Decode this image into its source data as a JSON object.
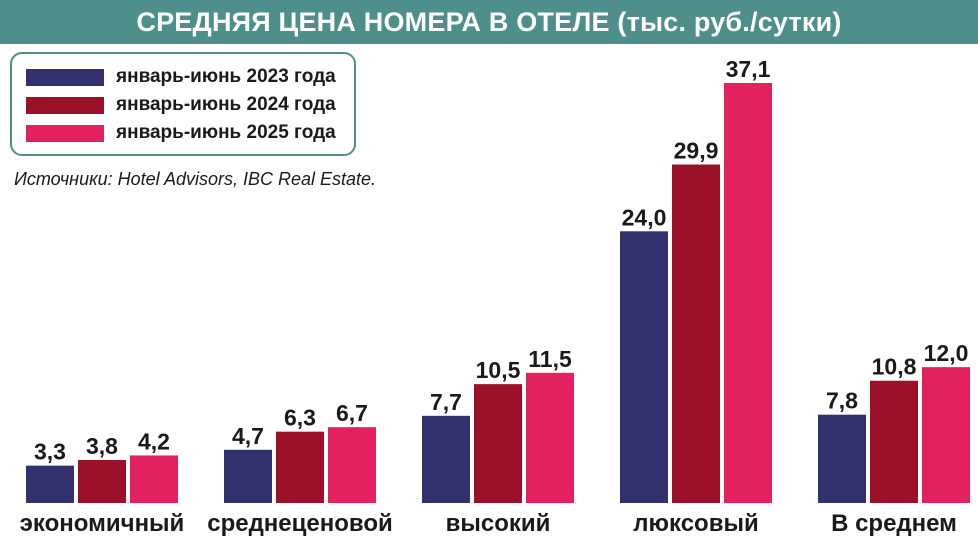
{
  "title": "СРЕДНЯЯ ЦЕНА НОМЕРА В ОТЕЛЕ (тыс. руб./сутки)",
  "source": "Источники: Hotel Advisors, IBC Real Estate.",
  "chart_data": {
    "type": "bar",
    "title": "СРЕДНЯЯ ЦЕНА НОМЕРА В ОТЕЛЕ (тыс. руб./сутки)",
    "categories": [
      "экономичный",
      "среднеценовой",
      "высокий",
      "люксовый",
      "В среднем"
    ],
    "series": [
      {
        "name": "январь-июнь 2023 года",
        "color": "#33306e",
        "values": [
          3.3,
          4.7,
          7.7,
          24.0,
          7.8
        ],
        "labels": [
          "3,3",
          "4,7",
          "7,7",
          "24,0",
          "7,8"
        ]
      },
      {
        "name": "январь-июнь 2024 года",
        "color": "#9b1129",
        "values": [
          3.8,
          6.3,
          10.5,
          29.9,
          10.8
        ],
        "labels": [
          "3,8",
          "6,3",
          "10,5",
          "29,9",
          "10,8"
        ]
      },
      {
        "name": "январь-июнь 2025 года",
        "color": "#e2215e",
        "values": [
          4.2,
          6.7,
          11.5,
          37.1,
          12.0
        ],
        "labels": [
          "4,2",
          "6,7",
          "11,5",
          "37,1",
          "12,0"
        ]
      }
    ],
    "xlabel": "",
    "ylabel": "",
    "ylim": [
      0,
      37.1
    ],
    "grid": false,
    "legend": "top-left"
  }
}
